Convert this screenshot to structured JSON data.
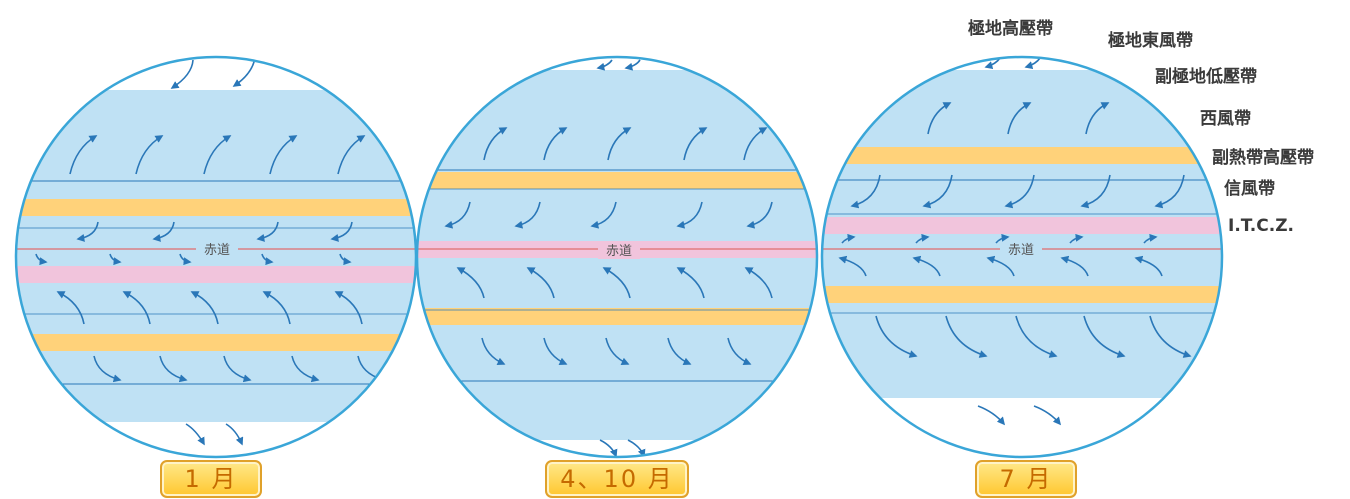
{
  "globes": [
    {
      "id": "jan",
      "month_label": "1 月",
      "equator_label": "赤道"
    },
    {
      "id": "aprOct",
      "month_label": "4、10 月",
      "equator_label": "赤道"
    },
    {
      "id": "jul",
      "month_label": "7 月",
      "equator_label": "赤道"
    }
  ],
  "belt_labels": {
    "polar_high": "極地高壓帶",
    "polar_easterlies": "極地東風帶",
    "subpolar_low": "副極地低壓帶",
    "westerlies": "西風帶",
    "subtropical_high": "副熱帶高壓帶",
    "trade_winds": "信風帶",
    "itcz": "I.T.C.Z."
  },
  "colors": {
    "ocean": "#bfe1f4",
    "outline": "#3aa6d8",
    "high_pressure_belt": "#ffd27a",
    "itcz_belt": "#f1c4dc",
    "equator_line": "#e06d6d",
    "arrow": "#2a77b8",
    "month_label_text": "#c56a00"
  }
}
